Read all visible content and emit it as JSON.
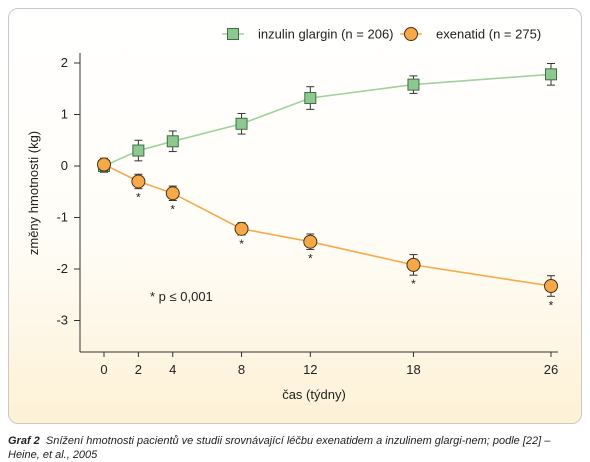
{
  "caption": {
    "label": "Graf 2",
    "text": "Snížení hmotnosti pacientů ve studii srovnávající léčbu exenatidem a inzulinem glargi-nem; podle [22] – Heine, et al., 2005"
  },
  "chart_data": {
    "type": "line",
    "title": "",
    "xlabel": "čas (týdny)",
    "ylabel": "změny hmotnosti (kg)",
    "x": [
      0,
      2,
      4,
      8,
      12,
      18,
      26
    ],
    "x_ticks": [
      0,
      2,
      4,
      8,
      12,
      18,
      26
    ],
    "y_ticks": [
      2,
      1,
      0,
      -1,
      -2,
      -3
    ],
    "ylim": [
      -3.6,
      2.2
    ],
    "xlim": [
      -1.5,
      26.5
    ],
    "grid": false,
    "legend_position": "top-right",
    "annotation": "* p ≤ 0,001",
    "significance_marker": "*",
    "series": [
      {
        "name": "inzulin glargin (n = 206)",
        "marker": "square",
        "color": "#8dc891",
        "stroke": "#3e6e45",
        "line_color": "#9fd29f",
        "values": [
          0.0,
          0.3,
          0.48,
          0.82,
          1.32,
          1.58,
          1.78
        ],
        "error": [
          0.12,
          0.2,
          0.2,
          0.2,
          0.22,
          0.17,
          0.21
        ],
        "significant": [
          false,
          false,
          false,
          false,
          false,
          false,
          false
        ]
      },
      {
        "name": "exenatid (n = 275)",
        "marker": "circle",
        "color": "#f7a94a",
        "stroke": "#4a3010",
        "line_color": "#f7a94a",
        "values": [
          0.03,
          -0.3,
          -0.53,
          -1.22,
          -1.47,
          -1.92,
          -2.33
        ],
        "error": [
          0.12,
          0.14,
          0.14,
          0.12,
          0.15,
          0.2,
          0.2
        ],
        "significant": [
          false,
          true,
          true,
          true,
          true,
          true,
          true
        ]
      }
    ]
  }
}
